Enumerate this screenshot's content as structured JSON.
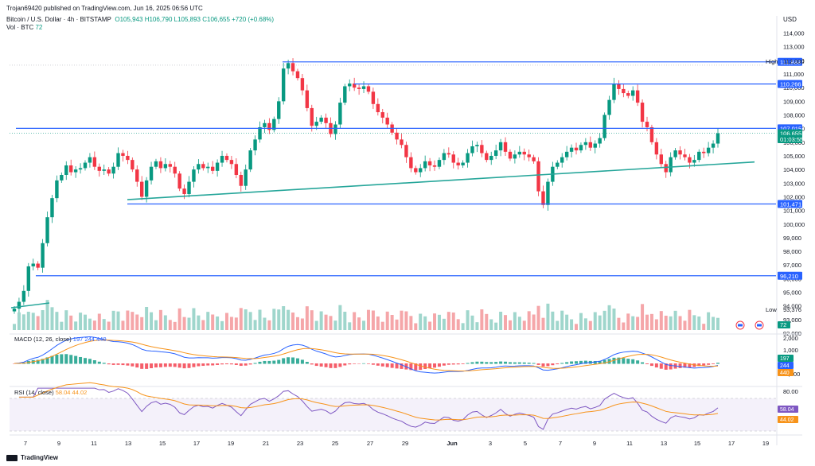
{
  "header": {
    "publisher": "Trojan69420 published on TradingView.com, Jun 16, 2025 06:56 UTC",
    "symbol": "Bitcoin / U.S. Dollar · 4h · BITSTAMP",
    "ohlc": "O105,943 H106,790 L105,893 C106,655 +720 (+0.68%)",
    "volume_label": "Vol · BTC",
    "volume_value": "72",
    "currency": "USD"
  },
  "indicators": {
    "macd_label": "MACD (12, 26, close)",
    "macd_values": "197  244  440",
    "rsi_label": "RSI (14, close)",
    "rsi_values": "58.04  44.02"
  },
  "colors": {
    "up": "#089981",
    "down": "#f23645",
    "level": "#2962ff",
    "trend": "#26a69a",
    "macd": "#2962ff",
    "signal": "#f7931a",
    "rsi": "#7e57c2"
  },
  "chart_data": {
    "type": "candlestick",
    "y_axis_labels": [
      "114,000",
      "113,000",
      "112,000",
      "111,000",
      "110,000",
      "109,000",
      "108,000",
      "107,000",
      "106,000",
      "105,000",
      "104,000",
      "103,000",
      "102,000",
      "101,000",
      "100,000",
      "99,000",
      "98,000",
      "97,000",
      "96,000",
      "95,000",
      "94,000",
      "93,000",
      "92,000"
    ],
    "x_axis_labels": [
      "7",
      "9",
      "11",
      "13",
      "15",
      "17",
      "19",
      "21",
      "23",
      "25",
      "27",
      "29",
      "Jun",
      "3",
      "5",
      "7",
      "9",
      "11",
      "13",
      "15",
      "17",
      "19"
    ],
    "ylim": [
      92000,
      114500
    ],
    "levels": [
      {
        "label": "111,888",
        "value": 111888,
        "from": 355
      },
      {
        "label": "110,266",
        "value": 110266,
        "from": 445
      },
      {
        "label": "107,015",
        "value": 107015,
        "from": 20
      },
      {
        "label": "101,471",
        "value": 101471,
        "from": 160
      },
      {
        "label": "96,210",
        "value": 96210,
        "from": 45
      }
    ],
    "badges": [
      {
        "label": "106,655",
        "value": 106655,
        "color": "#089981"
      },
      {
        "label": "01:03:55",
        "value": 106400,
        "color": "#089981"
      }
    ],
    "markers": [
      {
        "text": "High",
        "value": 112000
      },
      {
        "text": "112,000",
        "value": 112000
      },
      {
        "text": "Low",
        "value": 93750
      },
      {
        "text": "93,376",
        "value": 93376
      }
    ],
    "trendline": {
      "from": [
        160,
        101790
      ],
      "to": [
        948,
        104550
      ]
    },
    "closes": [
      93800,
      94300,
      95100,
      96900,
      97100,
      96800,
      98600,
      100500,
      101900,
      103200,
      103600,
      104300,
      103800,
      104000,
      104100,
      104500,
      104900,
      104200,
      103900,
      104000,
      103700,
      104200,
      105200,
      105000,
      104700,
      104000,
      103100,
      102000,
      103200,
      104200,
      104600,
      104100,
      104400,
      104200,
      103700,
      102600,
      102200,
      103100,
      104000,
      104400,
      104100,
      104200,
      103900,
      104500,
      105000,
      104700,
      104400,
      103600,
      102800,
      104000,
      105400,
      106200,
      107100,
      107400,
      106900,
      107700,
      109000,
      111400,
      111800,
      111200,
      110700,
      109800,
      108500,
      107200,
      107500,
      107800,
      107400,
      106600,
      107300,
      108900,
      110100,
      110300,
      110000,
      109900,
      110100,
      109700,
      108800,
      108200,
      107800,
      107300,
      106700,
      106200,
      105800,
      104900,
      104100,
      103800,
      104100,
      104600,
      104300,
      104200,
      104700,
      105200,
      105100,
      104500,
      104300,
      104500,
      105200,
      105700,
      105800,
      105200,
      104700,
      105000,
      105400,
      106000,
      105300,
      104800,
      105100,
      105300,
      105100,
      104900,
      104600,
      102400,
      101400,
      103100,
      104200,
      104500,
      104900,
      105300,
      105600,
      105400,
      105800,
      106000,
      105600,
      105900,
      106300,
      108000,
      109100,
      110300,
      109900,
      109600,
      109400,
      109800,
      108900,
      107500,
      107100,
      106000,
      105100,
      104400,
      103800,
      104900,
      105400,
      105100,
      104900,
      104500,
      104700,
      105300,
      105200,
      105600,
      105900,
      106655
    ]
  }
}
